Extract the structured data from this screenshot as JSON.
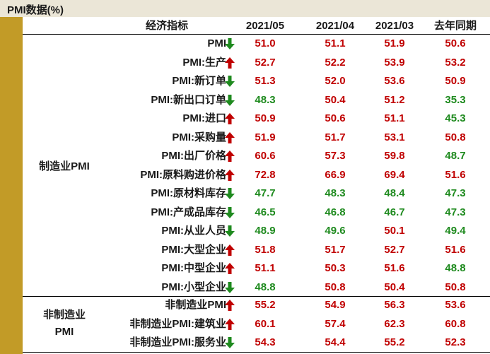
{
  "title": "PMI数据(%)",
  "headers": {
    "indicator": "经济指标",
    "col1": "2021/05",
    "col2": "2021/04",
    "col3": "2021/03",
    "col4": "去年同期"
  },
  "colors": {
    "up": "#c00000",
    "down": "#1e8a1e",
    "neutral": "#1a1a1a",
    "accent": "#c29b27"
  },
  "groups": [
    {
      "label": "制造业PMI",
      "rows": [
        {
          "name": "PMI",
          "trend": "down",
          "v1": "51.0",
          "v2": "51.1",
          "v3": "51.9",
          "v4": "50.6",
          "c1": "red",
          "c2": "red",
          "c3": "red",
          "c4": "red"
        },
        {
          "name": "PMI:生产",
          "trend": "up",
          "v1": "52.7",
          "v2": "52.2",
          "v3": "53.9",
          "v4": "53.2",
          "c1": "red",
          "c2": "red",
          "c3": "red",
          "c4": "red"
        },
        {
          "name": "PMI:新订单",
          "trend": "down",
          "v1": "51.3",
          "v2": "52.0",
          "v3": "53.6",
          "v4": "50.9",
          "c1": "red",
          "c2": "red",
          "c3": "red",
          "c4": "red"
        },
        {
          "name": "PMI:新出口订单",
          "trend": "down",
          "v1": "48.3",
          "v2": "50.4",
          "v3": "51.2",
          "v4": "35.3",
          "c1": "green",
          "c2": "red",
          "c3": "red",
          "c4": "green"
        },
        {
          "name": "PMI:进口",
          "trend": "up",
          "v1": "50.9",
          "v2": "50.6",
          "v3": "51.1",
          "v4": "45.3",
          "c1": "red",
          "c2": "red",
          "c3": "red",
          "c4": "green"
        },
        {
          "name": "PMI:采购量",
          "trend": "up",
          "v1": "51.9",
          "v2": "51.7",
          "v3": "53.1",
          "v4": "50.8",
          "c1": "red",
          "c2": "red",
          "c3": "red",
          "c4": "red"
        },
        {
          "name": "PMI:出厂价格",
          "trend": "up",
          "v1": "60.6",
          "v2": "57.3",
          "v3": "59.8",
          "v4": "48.7",
          "c1": "red",
          "c2": "red",
          "c3": "red",
          "c4": "green"
        },
        {
          "name": "PMI:原料购进价格",
          "trend": "up",
          "v1": "72.8",
          "v2": "66.9",
          "v3": "69.4",
          "v4": "51.6",
          "c1": "red",
          "c2": "red",
          "c3": "red",
          "c4": "red"
        },
        {
          "name": "PMI:原材料库存",
          "trend": "down",
          "v1": "47.7",
          "v2": "48.3",
          "v3": "48.4",
          "v4": "47.3",
          "c1": "green",
          "c2": "green",
          "c3": "green",
          "c4": "green"
        },
        {
          "name": "PMI:产成品库存",
          "trend": "down",
          "v1": "46.5",
          "v2": "46.8",
          "v3": "46.7",
          "v4": "47.3",
          "c1": "green",
          "c2": "green",
          "c3": "green",
          "c4": "green"
        },
        {
          "name": "PMI:从业人员",
          "trend": "down",
          "v1": "48.9",
          "v2": "49.6",
          "v3": "50.1",
          "v4": "49.4",
          "c1": "green",
          "c2": "green",
          "c3": "red",
          "c4": "green"
        },
        {
          "name": "PMI:大型企业",
          "trend": "up",
          "v1": "51.8",
          "v2": "51.7",
          "v3": "52.7",
          "v4": "51.6",
          "c1": "red",
          "c2": "red",
          "c3": "red",
          "c4": "red"
        },
        {
          "name": "PMI:中型企业",
          "trend": "up",
          "v1": "51.1",
          "v2": "50.3",
          "v3": "51.6",
          "v4": "48.8",
          "c1": "red",
          "c2": "red",
          "c3": "red",
          "c4": "green"
        },
        {
          "name": "PMI:小型企业",
          "trend": "down",
          "v1": "48.8",
          "v2": "50.8",
          "v3": "50.4",
          "v4": "50.8",
          "c1": "green",
          "c2": "red",
          "c3": "red",
          "c4": "red"
        }
      ]
    },
    {
      "label_line1": "非制造业",
      "label_line2": "PMI",
      "rows": [
        {
          "name": "非制造业PMI",
          "trend": "up",
          "v1": "55.2",
          "v2": "54.9",
          "v3": "56.3",
          "v4": "53.6",
          "c1": "red",
          "c2": "red",
          "c3": "red",
          "c4": "red"
        },
        {
          "name": "非制造业PMI:建筑业",
          "trend": "up",
          "v1": "60.1",
          "v2": "57.4",
          "v3": "62.3",
          "v4": "60.8",
          "c1": "red",
          "c2": "red",
          "c3": "red",
          "c4": "red"
        },
        {
          "name": "非制造业PMI:服务业",
          "trend": "down",
          "v1": "54.3",
          "v2": "54.4",
          "v3": "55.2",
          "v4": "52.3",
          "c1": "red",
          "c2": "red",
          "c3": "red",
          "c4": "red"
        }
      ]
    }
  ]
}
